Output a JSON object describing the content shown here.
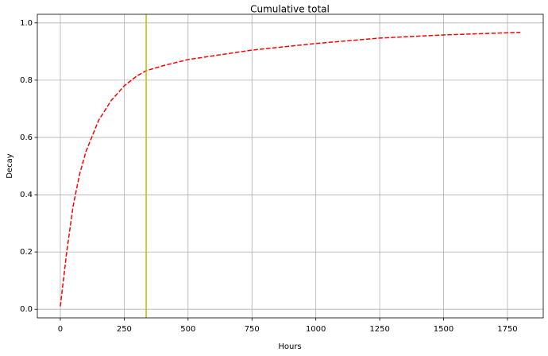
{
  "chart_data": {
    "type": "line",
    "title": "Cumulative total",
    "xlabel": "Hours",
    "ylabel": "Decay",
    "x": [
      0,
      25,
      50,
      75,
      100,
      150,
      200,
      250,
      300,
      336,
      400,
      500,
      750,
      1000,
      1250,
      1500,
      1800
    ],
    "series": [
      {
        "color": "#ff0000",
        "linestyle": "dashed",
        "values": [
          0.01,
          0.2,
          0.36,
          0.47,
          0.55,
          0.66,
          0.73,
          0.78,
          0.815,
          0.833,
          0.85,
          0.872,
          0.905,
          0.928,
          0.947,
          0.958,
          0.967
        ]
      }
    ],
    "vline": {
      "x": 336,
      "color": "#bfbf00"
    },
    "xlim": [
      -90,
      1890
    ],
    "ylim": [
      -0.03,
      1.03
    ],
    "xticks": [
      0,
      250,
      500,
      750,
      1000,
      1250,
      1500,
      1750
    ],
    "yticks": [
      {
        "value": 0,
        "label": "0.0"
      },
      0.2,
      0.4,
      0.6,
      0.8,
      {
        "value": 1,
        "label": "1.0"
      }
    ],
    "grid": true
  }
}
